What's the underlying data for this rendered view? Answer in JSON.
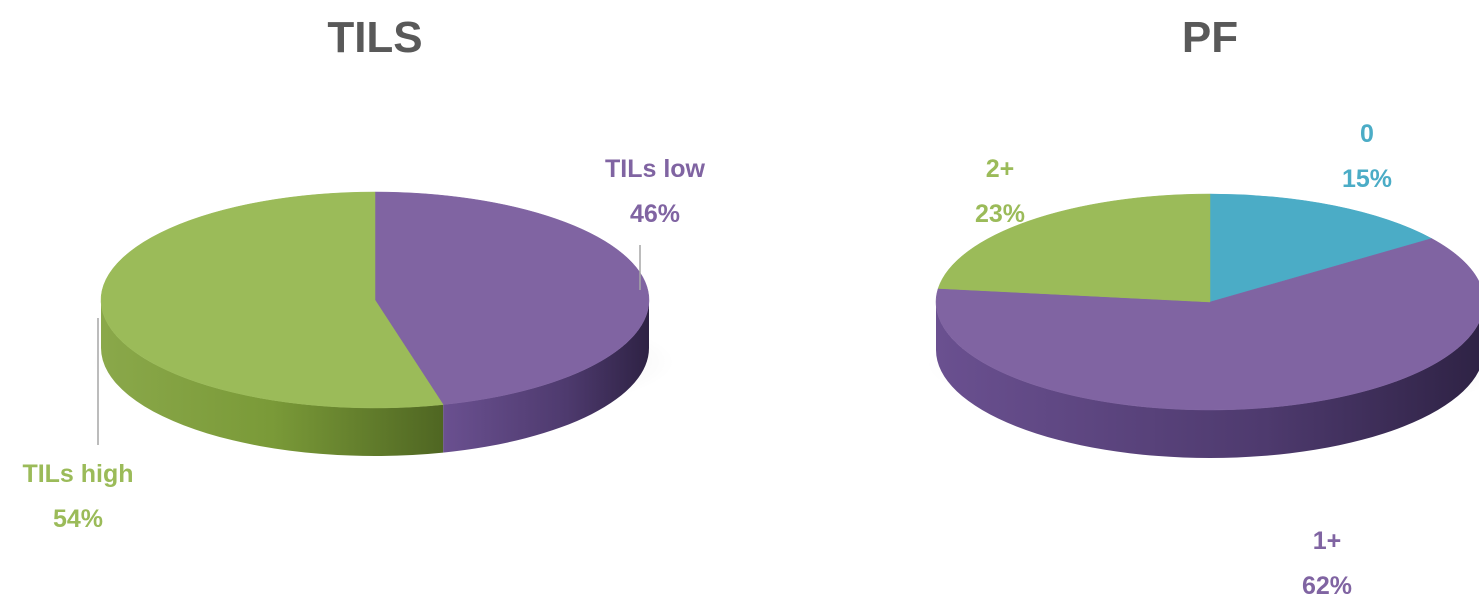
{
  "chart_data": [
    {
      "type": "pie",
      "title": "TILS",
      "categories": [
        "TILs low",
        "TILs high"
      ],
      "values": [
        46,
        54
      ],
      "value_labels": [
        "46%",
        "54%"
      ],
      "colors": [
        "#8064a2",
        "#9bbb59"
      ]
    },
    {
      "type": "pie",
      "title": "PF",
      "categories": [
        "0",
        "1+",
        "2+"
      ],
      "values": [
        15,
        62,
        23
      ],
      "value_labels": [
        "15%",
        "62%",
        "23%"
      ],
      "colors": [
        "#4bacc6",
        "#8064a2",
        "#9bbb59"
      ]
    }
  ]
}
